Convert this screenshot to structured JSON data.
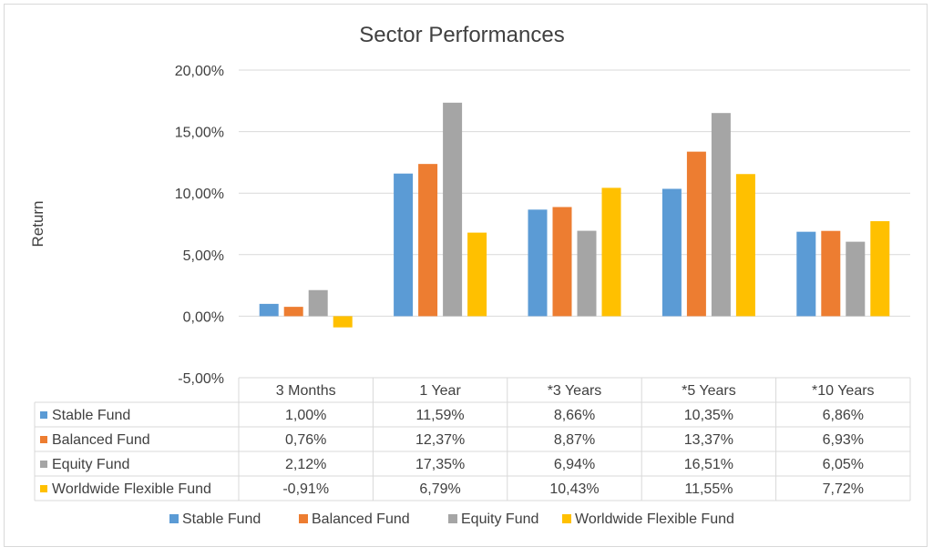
{
  "chart_data": {
    "type": "bar",
    "title": "Sector Performances",
    "ylabel": "Return",
    "xlabel": "",
    "categories": [
      "3 Months",
      "1 Year",
      "*3 Years",
      "*5 Years",
      "*10 Years"
    ],
    "ylim": [
      -5,
      20
    ],
    "yticks": [
      20,
      15,
      10,
      5,
      0,
      -5
    ],
    "ytick_labels": [
      "20,00%",
      "15,00%",
      "10,00%",
      "5,00%",
      "0,00%",
      "-5,00%"
    ],
    "grid": true,
    "legend_position": "bottom",
    "series": [
      {
        "name": "Stable Fund",
        "color": "#5b9bd5",
        "values": [
          1.0,
          11.59,
          8.66,
          10.35,
          6.86
        ],
        "labels": [
          "1,00%",
          "11,59%",
          "8,66%",
          "10,35%",
          "6,86%"
        ]
      },
      {
        "name": "Balanced Fund",
        "color": "#ed7d31",
        "values": [
          0.76,
          12.37,
          8.87,
          13.37,
          6.93
        ],
        "labels": [
          "0,76%",
          "12,37%",
          "8,87%",
          "13,37%",
          "6,93%"
        ]
      },
      {
        "name": "Equity Fund",
        "color": "#a5a5a5",
        "values": [
          2.12,
          17.35,
          6.94,
          16.51,
          6.05
        ],
        "labels": [
          "2,12%",
          "17,35%",
          "6,94%",
          "16,51%",
          "6,05%"
        ]
      },
      {
        "name": "Worldwide Flexible Fund",
        "color": "#ffc000",
        "values": [
          -0.91,
          6.79,
          10.43,
          11.55,
          7.72
        ],
        "labels": [
          "-0,91%",
          "6,79%",
          "10,43%",
          "11,55%",
          "7,72%"
        ]
      }
    ]
  }
}
